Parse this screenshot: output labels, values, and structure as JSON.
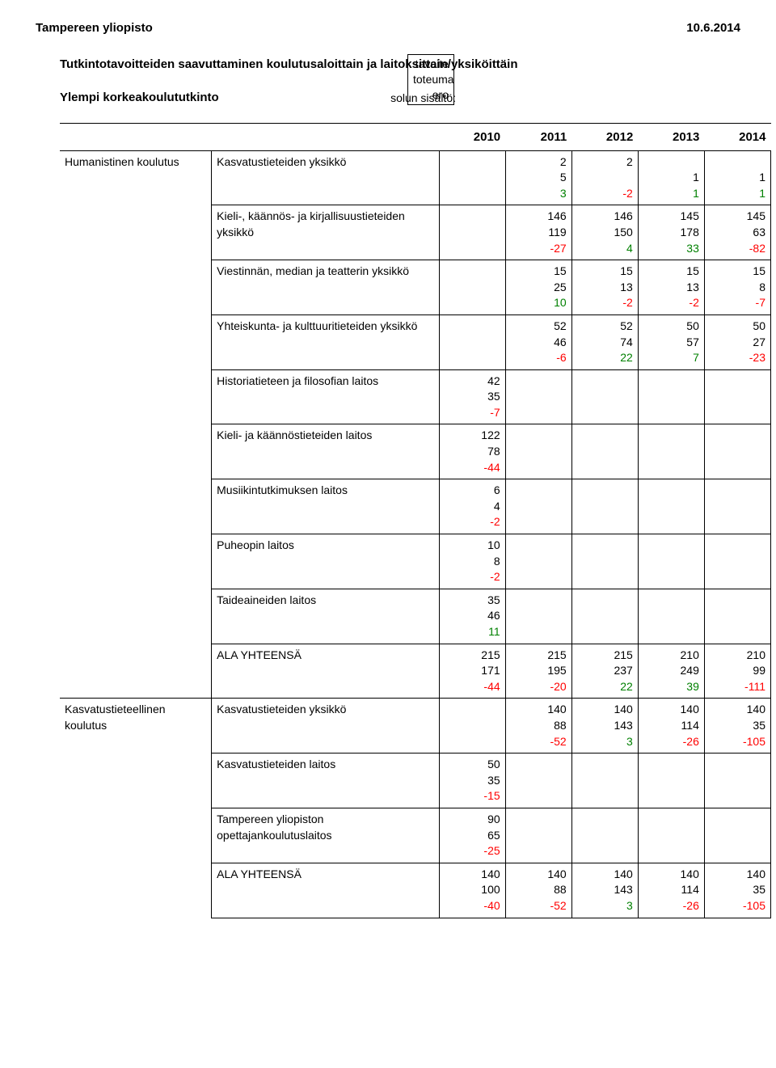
{
  "colors": {
    "text": "#000000",
    "negative": "#ff0000",
    "positive": "#008000",
    "background": "#ffffff",
    "border": "#000000"
  },
  "fonts": {
    "base_size": 14,
    "header_size": 15
  },
  "header": {
    "left": "Tampereen yliopisto",
    "right": "10.6.2014"
  },
  "subtitle": "Tutkintotavoitteiden saavuttaminen koulutusaloittain ja laitoksittain/yksiköittäin",
  "meta": {
    "degree_label": "Ylempi korkeakoulututkinto",
    "cell_label": "solun sisältö:",
    "legend": [
      "tavoite",
      "toteuma",
      "ero"
    ]
  },
  "years": [
    "2010",
    "2011",
    "2012",
    "2013",
    "2014"
  ],
  "sections": [
    {
      "label": "Humanistinen koulutus",
      "rows": [
        {
          "name": "Kasvatustieteiden yksikkö",
          "cells": [
            null,
            [
              2,
              5,
              3
            ],
            [
              2,
              null,
              -2
            ],
            [
              null,
              1,
              1
            ],
            [
              null,
              1,
              1
            ]
          ]
        },
        {
          "name": "Kieli-, käännös- ja kirjallisuustieteiden yksikkö",
          "cells": [
            null,
            [
              146,
              119,
              -27
            ],
            [
              146,
              150,
              4
            ],
            [
              145,
              178,
              33
            ],
            [
              145,
              63,
              -82
            ]
          ]
        },
        {
          "name": "Viestinnän, median ja teatterin yksikkö",
          "cells": [
            null,
            [
              15,
              25,
              10
            ],
            [
              15,
              13,
              -2
            ],
            [
              15,
              13,
              -2
            ],
            [
              15,
              8,
              -7
            ]
          ]
        },
        {
          "name": "Yhteiskunta- ja kulttuuritieteiden yksikkö",
          "cells": [
            null,
            [
              52,
              46,
              -6
            ],
            [
              52,
              74,
              22
            ],
            [
              50,
              57,
              7
            ],
            [
              50,
              27,
              -23
            ]
          ]
        },
        {
          "name": "Historiatieteen ja filosofian laitos",
          "cells": [
            [
              42,
              35,
              -7
            ],
            null,
            null,
            null,
            null
          ]
        },
        {
          "name": "Kieli- ja käännöstieteiden laitos",
          "cells": [
            [
              122,
              78,
              -44
            ],
            null,
            null,
            null,
            null
          ]
        },
        {
          "name": "Musiikintutkimuksen laitos",
          "cells": [
            [
              6,
              4,
              -2
            ],
            null,
            null,
            null,
            null
          ]
        },
        {
          "name": "Puheopin laitos",
          "cells": [
            [
              10,
              8,
              -2
            ],
            null,
            null,
            null,
            null
          ]
        },
        {
          "name": "Taideaineiden laitos",
          "cells": [
            [
              35,
              46,
              11
            ],
            null,
            null,
            null,
            null
          ]
        },
        {
          "name": "ALA YHTEENSÄ",
          "cells": [
            [
              215,
              171,
              -44
            ],
            [
              215,
              195,
              -20
            ],
            [
              215,
              237,
              22
            ],
            [
              210,
              249,
              39
            ],
            [
              210,
              99,
              -111
            ]
          ]
        }
      ]
    },
    {
      "label": "Kasvatustieteellinen koulutus",
      "rows": [
        {
          "name": "Kasvatustieteiden yksikkö",
          "cells": [
            null,
            [
              140,
              88,
              -52
            ],
            [
              140,
              143,
              3
            ],
            [
              140,
              114,
              -26
            ],
            [
              140,
              35,
              -105
            ]
          ]
        },
        {
          "name": "Kasvatustieteiden laitos",
          "cells": [
            [
              50,
              35,
              -15
            ],
            null,
            null,
            null,
            null
          ]
        },
        {
          "name": "Tampereen yliopiston opettajankoulutuslaitos",
          "cells": [
            [
              90,
              65,
              -25
            ],
            null,
            null,
            null,
            null
          ]
        },
        {
          "name": "ALA YHTEENSÄ",
          "cells": [
            [
              140,
              100,
              -40
            ],
            [
              140,
              88,
              -52
            ],
            [
              140,
              143,
              3
            ],
            [
              140,
              114,
              -26
            ],
            [
              140,
              35,
              -105
            ]
          ]
        }
      ]
    }
  ]
}
